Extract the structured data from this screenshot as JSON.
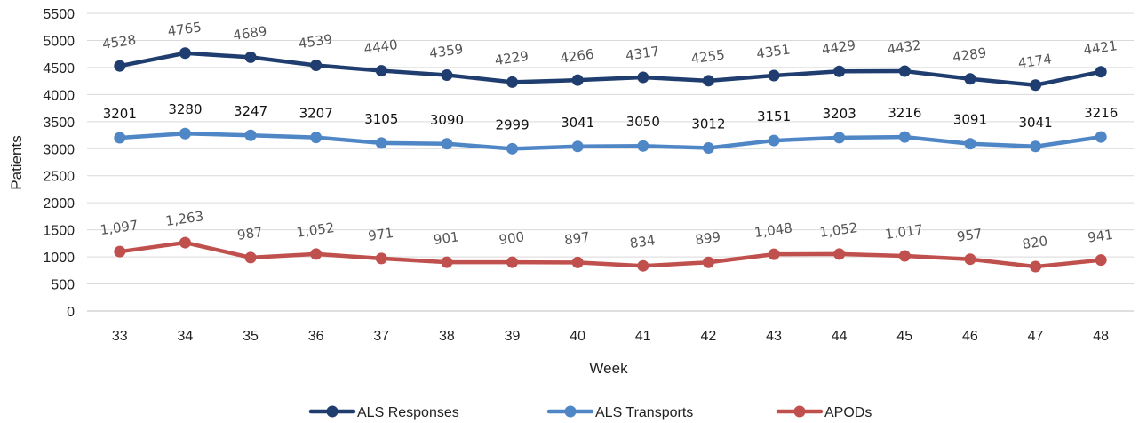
{
  "chart_data": {
    "type": "line",
    "xlabel": "Week",
    "ylabel": "Patients",
    "ylim": [
      0,
      5500
    ],
    "yticks": [
      "0",
      "500",
      "1000",
      "1500",
      "2000",
      "2500",
      "3000",
      "3500",
      "4000",
      "4500",
      "5000",
      "5500"
    ],
    "grid": true,
    "legend": "bottom",
    "categories": [
      "33",
      "34",
      "35",
      "36",
      "37",
      "38",
      "39",
      "40",
      "41",
      "42",
      "43",
      "44",
      "45",
      "46",
      "47",
      "48"
    ],
    "series": [
      {
        "name": "ALS Responses",
        "color": "#1f3d6e",
        "label_color": "#555555",
        "values": [
          4528,
          4765,
          4689,
          4539,
          4440,
          4359,
          4229,
          4266,
          4317,
          4255,
          4351,
          4429,
          4432,
          4289,
          4174,
          4421
        ],
        "labels": [
          "4528",
          "4765",
          "4689",
          "4539",
          "4440",
          "4359",
          "4229",
          "4266",
          "4317",
          "4255",
          "4351",
          "4429",
          "4432",
          "4289",
          "4174",
          "4421"
        ]
      },
      {
        "name": "ALS Transports",
        "color": "#4f86c6",
        "label_color": "#111111",
        "values": [
          3201,
          3280,
          3247,
          3207,
          3105,
          3090,
          2999,
          3041,
          3050,
          3012,
          3151,
          3203,
          3216,
          3091,
          3041,
          3216
        ],
        "labels": [
          "3201",
          "3280",
          "3247",
          "3207",
          "3105",
          "3090",
          "2999",
          "3041",
          "3050",
          "3012",
          "3151",
          "3203",
          "3216",
          "3091",
          "3041",
          "3216"
        ]
      },
      {
        "name": "APODs",
        "color": "#c0504d",
        "label_color": "#555555",
        "values": [
          1097,
          1263,
          987,
          1052,
          971,
          901,
          900,
          897,
          834,
          899,
          1048,
          1052,
          1017,
          957,
          820,
          941
        ],
        "labels": [
          "1,097",
          "1,263",
          "987",
          "1,052",
          "971",
          "901",
          "900",
          "897",
          "834",
          "899",
          "1,048",
          "1,052",
          "1,017",
          "957",
          "820",
          "941"
        ]
      }
    ]
  }
}
